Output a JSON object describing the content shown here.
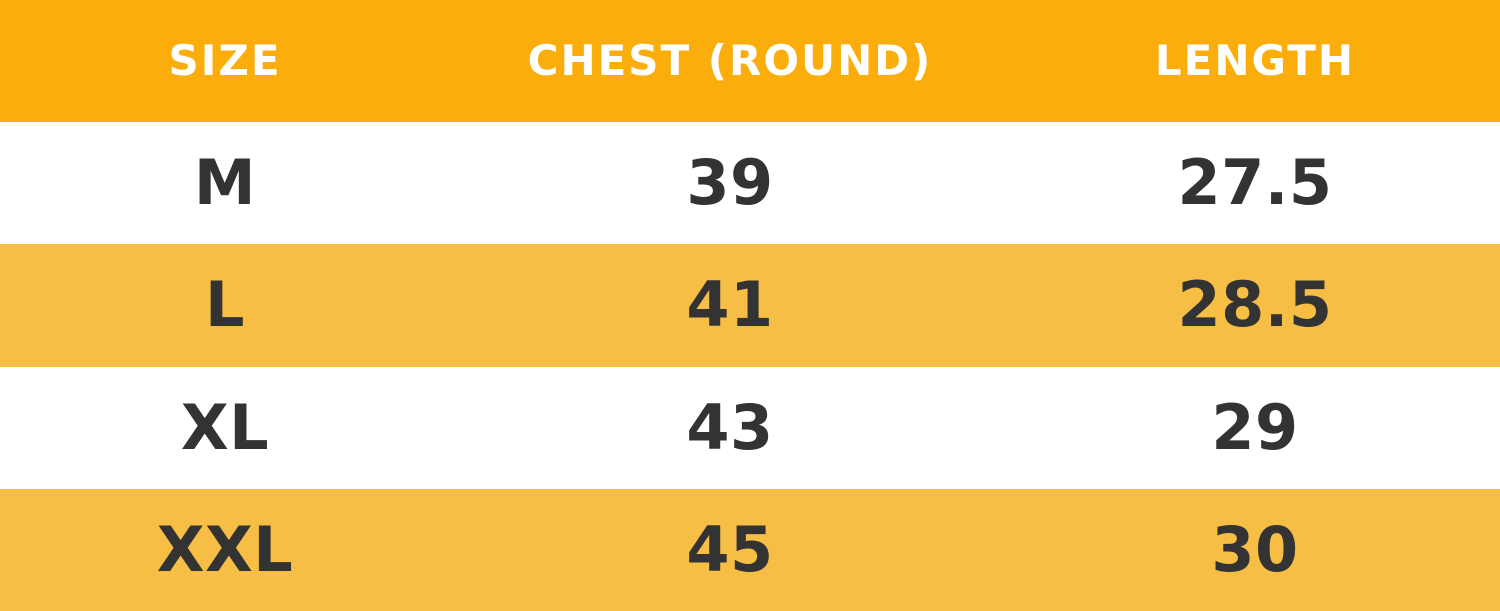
{
  "colors": {
    "header_bg": "#FBAD0C",
    "alt_row_bg": "#F7BE45",
    "row_bg": "#FFFFFF",
    "header_text": "#FFFFFF",
    "cell_text": "#333333"
  },
  "table": {
    "columns": [
      {
        "label": "SIZE"
      },
      {
        "label": "CHEST (ROUND)"
      },
      {
        "label": "LENGTH"
      }
    ],
    "rows": [
      {
        "size": "M",
        "chest": "39",
        "length": "27.5"
      },
      {
        "size": "L",
        "chest": "41",
        "length": "28.5"
      },
      {
        "size": "XL",
        "chest": "43",
        "length": "29"
      },
      {
        "size": "XXL",
        "chest": "45",
        "length": "30"
      }
    ]
  },
  "chart_data": {
    "type": "table",
    "columns": [
      "SIZE",
      "CHEST (ROUND)",
      "LENGTH"
    ],
    "rows": [
      [
        "M",
        39,
        27.5
      ],
      [
        "L",
        41,
        28.5
      ],
      [
        "XL",
        43,
        29
      ],
      [
        "XXL",
        45,
        30
      ]
    ]
  }
}
